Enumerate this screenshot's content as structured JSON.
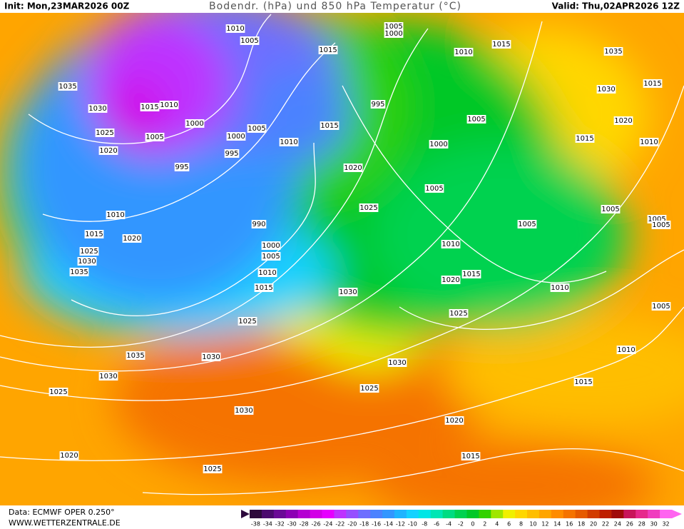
{
  "header": {
    "init": "Init: Mon,23MAR2026 00Z",
    "title": "Bodendr. (hPa) und 850 hPa Temperatur (°C)",
    "valid": "Valid: Thu,02APR2026 12Z"
  },
  "footer": {
    "data": "Data: ECMWF OPER 0.250°",
    "site": "WWW.WETTERZENTRALE.DE"
  },
  "colorbar": {
    "ticks": [
      -38,
      -34,
      -32,
      -30,
      -28,
      -26,
      -24,
      -22,
      -20,
      -18,
      -16,
      -14,
      -12,
      -10,
      -8,
      -6,
      -4,
      -2,
      0,
      2,
      4,
      6,
      8,
      10,
      12,
      14,
      16,
      18,
      20,
      22,
      24,
      26,
      28,
      30,
      32
    ],
    "colors": [
      "#2d0a3c",
      "#4b0a6e",
      "#6a0a96",
      "#8c00b4",
      "#b400d2",
      "#d200e6",
      "#e600ff",
      "#be32ff",
      "#9650ff",
      "#6e6eff",
      "#4b82ff",
      "#3296ff",
      "#1eb4ff",
      "#14d2ff",
      "#00e6e6",
      "#00e6b4",
      "#00dc82",
      "#00d250",
      "#00c828",
      "#32d200",
      "#a0e600",
      "#f0f000",
      "#ffd700",
      "#ffbe00",
      "#ffa500",
      "#ff8c00",
      "#f57300",
      "#e65a00",
      "#d23c00",
      "#be1e00",
      "#a00a0a",
      "#c8145a",
      "#e6288c",
      "#f03cbe",
      "#ff64f0"
    ]
  },
  "isobar_labels": [
    "1010",
    "1005",
    "1005",
    "1000",
    "1015",
    "1010",
    "1015",
    "1035",
    "1035",
    "1030",
    "1015",
    "1030",
    "1015",
    "1010",
    "995",
    "1000",
    "1005",
    "1015",
    "1005",
    "1020",
    "1025",
    "1005",
    "1000",
    "1010",
    "1015",
    "1010",
    "1020",
    "995",
    "1000",
    "995",
    "1020",
    "1005",
    "1025",
    "1005",
    "1010",
    "1005",
    "1005",
    "990",
    "1005",
    "1015",
    "1020",
    "1000",
    "1010",
    "1025",
    "1005",
    "1030",
    "1010",
    "1035",
    "1015",
    "1020",
    "1015",
    "1030",
    "1010",
    "1005",
    "1025",
    "1025",
    "1035",
    "1030",
    "1010",
    "1030",
    "1030",
    "1015",
    "1025",
    "1025",
    "1030",
    "1020",
    "1020",
    "1015",
    "1025"
  ]
}
